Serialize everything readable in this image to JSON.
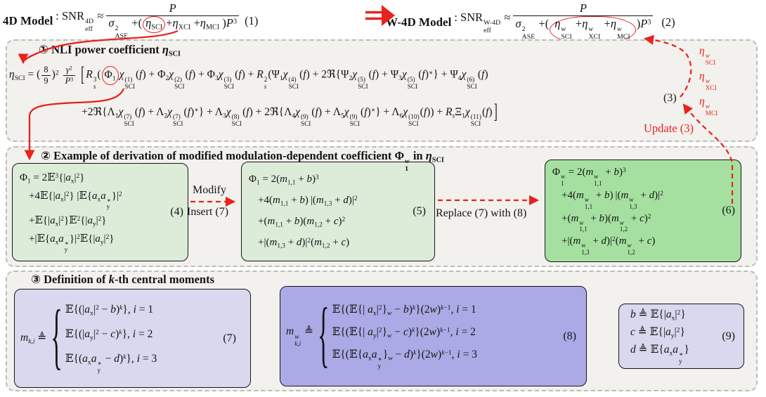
{
  "colors": {
    "accent_red": "#e8221c",
    "panel_gray": "#f2f1ee",
    "panel_border": "#bcbcbc",
    "green_light": "#dcecd9",
    "green_bright": "#a5e0a0",
    "purple_light": "#d9d8ee",
    "purple_mid": "#abaae6",
    "text": "#141414"
  },
  "top": {
    "eq1": {
      "model": "4D Model",
      "lhs_html": ": SNR<span class='ss'><span>4D</span><span>eff</span></span> &#8776;",
      "num_html": "<i>P</i>",
      "den_html": "<i>&#963;</i><span class='ss'><span>2</span><span>ASE</span></span> +(<span class='circle-red'><i>&#951;</i><sub>SCI</sub></span>+<i>&#951;</i><sub>XCI</sub> +<i>&#951;</i><sub>MCI</sub> )<i>P</i><sup>3</sup>",
      "number": "(1)"
    },
    "implies_arrow": "double-right-arrow",
    "eq2": {
      "model": "W-4D Model",
      "lhs_html": ": SNR<span class='ss'><span>W-4D</span><span>eff</span></span> &#8776;",
      "num_html": "<i>P</i>",
      "den_html": "<i>&#963;</i><span class='ss'><span>2</span><span>ASE</span></span> +(<span class='circle-red wide'><i>&#951;</i><span class='ss'><span><i>w</i></span><span>SCI</span></span> +<i>&#951;</i><span class='ss'><span><i>w</i></span><span>XCI</span></span> +<i>&#951;</i><span class='ss'><span><i>w</i></span><span>MCI</span></span></span>)<i>P</i><sup>3</sup>",
      "number": "(2)"
    }
  },
  "box1": {
    "title_html": "&#9312; NLI power coefficient <i>&#951;</i><sub>SCI</sub>",
    "line1_html": "<i>&#951;</i><sub>SCI</sub> = (<span class='frac sm'><span class='num'>8</span><span class='den'>9</span></span>)<sup>2</sup> <span class='frac sm'><span class='num'><i>&#947;</i><sup>2</sup></span><span class='den'><i>P</i><sup>3</sup></span></span> <span class='tallb'>[</span><i>R</i><span class='ss'><span>3</span><span><i>s</i></span></span>(<span class='circle-red'>&#934;<sub>1</sub></span><i>&#967;</i><span class='ss'><span>(1)</span><span>SCI</span></span>(<i>f</i>) + &#934;<sub>2</sub><i>&#967;</i><span class='ss'><span>(2)</span><span>SCI</span></span>(<i>f</i>) + &#934;<sub>3</sub><i>&#967;</i><span class='ss'><span>(3)</span><span>SCI</span></span>(<i>f</i>) + <i>R</i><span class='ss'><span>2</span><span><i>s</i></span></span>(&#936;<sub>1</sub><i>&#967;</i><span class='ss'><span>(4)</span><span>SCI</span></span>(<i>f</i>) + 2&#8476;{&#936;<sub>2</sub><i>&#967;</i><span class='ss'><span>(5)</span><span>SCI</span></span>(<i>f</i>) + &#936;<sub>3</sub><i>&#967;</i><span class='ss'><span>(5)</span><span>SCI</span></span>(<i>f</i>)<sup>&#8727;</sup>} + &#936;<sub>4</sub><i>&#967;</i><span class='ss'><span>(6)</span><span>SCI</span></span>(<i>f</i>)",
    "line2_html": "+2&#8476;{&#923;<sub>1</sub><i>&#967;</i><span class='ss'><span>(7)</span><span>SCI</span></span>(<i>f</i>) + &#923;<sub>2</sub><i>&#967;</i><span class='ss'><span>(7)</span><span>SCI</span></span>(<i>f</i>)<sup>&#8727;</sup>} + &#923;<sub>3</sub><i>&#967;</i><span class='ss'><span>(8)</span><span>SCI</span></span>(<i>f</i>) + 2&#8476;{&#923;<sub>4</sub><i>&#967;</i><span class='ss'><span>(9)</span><span>SCI</span></span>(<i>f</i>) + &#923;<sub>5</sub><i>&#967;</i><span class='ss'><span>(9)</span><span>SCI</span></span>(<i>f</i>)<sup>&#8727;</sup>} + &#923;<sub>6</sub><i>&#967;</i><span class='ss'><span>(10)</span><span>SCI</span></span>(<i>f</i>)) + <i>R</i><sub><i>s</i></sub>&#926;<sub>1</sub><i>&#967;</i><span class='ss'><span>(11)</span><span>SCI</span></span>(<i>f</i>)<span class='tallb'>]</span>",
    "number": "(3)",
    "eta_labels_html": [
      "<i>&#951;</i><span class='ss'><span><i>w</i></span><span>SCI</span></span>",
      "<i>&#951;</i><span class='ss'><span><i>w</i></span><span>XCI</span></span>",
      "<i>&#951;</i><span class='ss'><span><i>w</i></span><span>MCI</span></span>"
    ],
    "update_label": "Update (3)"
  },
  "box2": {
    "title_html": "&#9313; Example of derivation of modified modulation-dependent coefficient &#934;<span class='ss'><span><i>w</i></span><span>1</span></span> in <i>&#951;</i><sub>SCI</sub>",
    "eq4": {
      "lines_html": [
        "&#934;<sub>1</sub> = 2&#120124;<sup>3</sup>{|<i>a</i><sub>x</sub>|<sup>2</sup>}",
        "+4&#120124;{|<i>a</i><sub>x</sub>|<sup>2</sup>} |&#120124;{<i>a</i><sub>x</sub><i>a</i><span class='ss'><span>&#8727;</span><span>y</span></span>}|<sup>2</sup>",
        "+&#120124;{|<i>a</i><sub>x</sub>|<sup>2</sup>}&#120124;<sup>2</sup>{|<i>a</i><sub>y</sub>|<sup>2</sup>}",
        "+|&#120124;{<i>a</i><sub>x</sub><i>a</i><span class='ss'><span>&#8727;</span><span>y</span></span>}|<sup>2</sup>&#120124;{|<i>a</i><sub>y</sub>|<sup>2</sup>}"
      ],
      "number": "(4)"
    },
    "arrow1_top": "Modify",
    "arrow1_bottom": "Insert (7)",
    "eq5": {
      "lines_html": [
        "&#934;<sub>1</sub> = 2(<i>m</i><sub>1,1</sub> + <i>b</i>)<sup>3</sup>",
        "+4(<i>m</i><sub>1,1</sub> + <i>b</i>)&#8201;|(<i>m</i><sub>1,3</sub> + <i>d</i>)|<sup>2</sup>",
        "+(<i>m</i><sub>1,1</sub> + <i>b</i>)(<i>m</i><sub>1,2</sub> + <i>c</i>)<sup>2</sup>",
        "+|(<i>m</i><sub>1,3</sub> + <i>d</i>)|<sup>2</sup>(<i>m</i><sub>1,2</sub> + <i>c</i>)"
      ],
      "number": "(5)"
    },
    "arrow2_label": "Replace (7) with (8)",
    "eq6": {
      "lines_html": [
        "&#934;<span class='ss'><span><i>w</i></span><span>1</span></span> = 2(<i>m</i><span class='ss'><span><i>w</i></span><span>1,1</span></span> + <i>b</i>)<sup>3</sup>",
        "+4(<i>m</i><span class='ss'><span><i>w</i></span><span>1,1</span></span> + <i>b</i>)&#8201;|(<i>m</i><span class='ss'><span><i>w</i></span><span>1,3</span></span> + <i>d</i>)|<sup>2</sup>",
        "+(<i>m</i><span class='ss'><span><i>w</i></span><span>1,1</span></span> + <i>b</i>)(<i>m</i><span class='ss'><span><i>w</i></span><span>1,2</span></span> + <i>c</i>)<sup>2</sup>",
        "+|(<i>m</i><span class='ss'><span><i>w</i></span><span>1,3</span></span> + <i>d</i>)|<sup>2</sup>(<i>m</i><span class='ss'><span><i>w</i></span><span>1,2</span></span> + <i>c</i>)"
      ],
      "number": "(6)"
    }
  },
  "box3": {
    "title_html": "&#9314; Definition of <i>k</i>-th central moments",
    "eq7": {
      "lhs_html": "<i>m</i><sub><i>k</i>,<i>i</i></sub> &#8796;",
      "rows_html": [
        "&#120124;{(|<i>a</i><sub>x</sub>|<sup>2</sup> &#8722; <i>b</i>)<sup><i>k</i></sup>}, <i>i</i> = 1",
        "&#120124;{(|<i>a</i><sub>y</sub>|<sup>2</sup> &#8722; <i>c</i>)<sup><i>k</i></sup>}, <i>i</i> = 2",
        "&#120124;{(<i>a</i><sub>x</sub><i>a</i><span class='ss'><span>&#8727;</span><span>y</span></span> &#8722; <i>d</i>)<sup><i>k</i></sup>}, <i>i</i> = 3"
      ],
      "number": "(7)"
    },
    "eq8": {
      "lhs_html": "<i>m</i><span class='ss'><span><i>w</i></span><span><i>k</i>,<i>i</i></span></span> &#8796;",
      "rows_html": [
        "&#120124;{(&#120124;{| <i>a</i><sub>x</sub>|<sup>2</sup>}<sub><i>w</i></sub> &#8722; <i>b</i>)<sup><i>k</i></sup>}(2<i>w</i>)<sup><i>k</i>&#8722;1</sup>, <i>i</i> = 1",
        "&#120124;{(&#120124;{| <i>a</i><sub>y</sub>|<sup>2</sup>}<sub><i>w</i></sub> &#8722; <i>c</i>)<sup><i>k</i></sup>}(2<i>w</i>)<sup><i>k</i>&#8722;1</sup>, <i>i</i> = 2",
        "&#120124;{(&#120124;{<i>a</i><sub>x</sub><i>a</i><span class='ss'><span>&#8727;</span><span>y</span></span>}<sub><i>w</i></sub> &#8722; <i>d</i>)<sup><i>k</i></sup>}(2<i>w</i>)<sup><i>k</i>&#8722;1</sup>, <i>i</i> = 3"
      ],
      "number": "(8)"
    },
    "eq9": {
      "rows_html": [
        "<i>b</i> &#8796; &#120124;{|<i>a</i><sub>x</sub>|<sup>2</sup>}",
        "<i>c</i> &#8796; &#120124;{|<i>a</i><sub>y</sub>|<sup>2</sup>}",
        "<i>d</i> &#8796; &#120124;{<i>a</i><sub>x</sub><i>a</i><span class='ss'><span>&#8727;</span><span>y</span></span>}"
      ],
      "number": "(9)"
    }
  }
}
